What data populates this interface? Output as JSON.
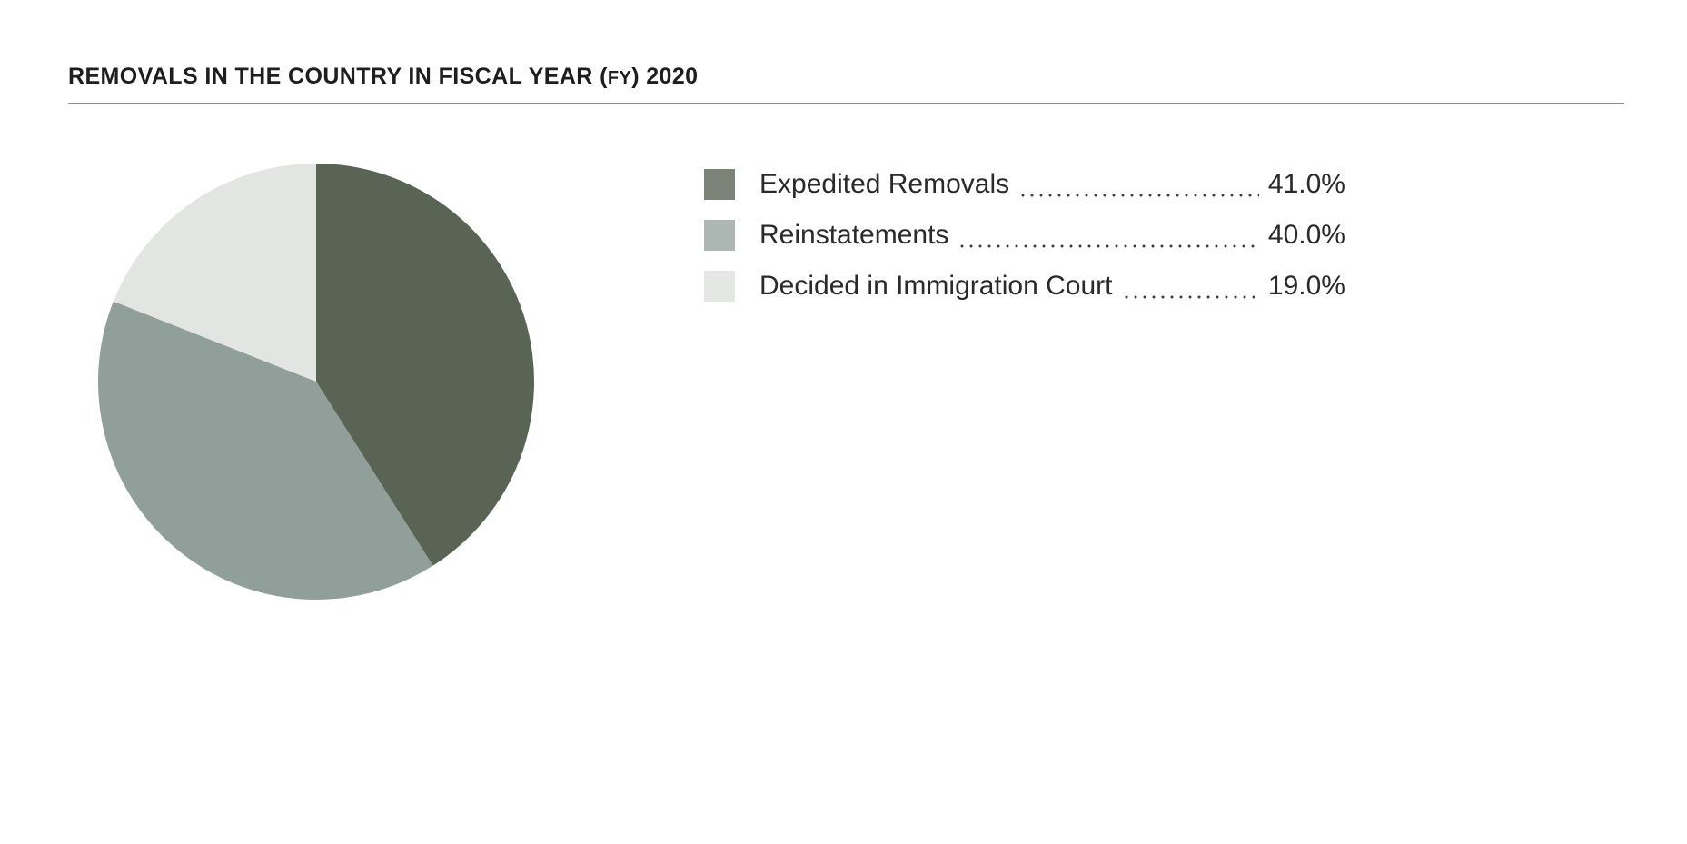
{
  "chart_data": {
    "type": "pie",
    "title": "REMOVALS IN THE COUNTRY IN FISCAL YEAR (",
    "title_abbrev": "FY",
    "title_suffix": ") 2020",
    "categories": [
      "Expedited Removals",
      "Reinstatements",
      "Decided in Immigration Court"
    ],
    "values": [
      41.0,
      40.0,
      19.0
    ],
    "value_labels": [
      "41.0%",
      "40.0%",
      "19.0%"
    ],
    "units": "%",
    "pie_colors": [
      "#5a6454",
      "#909f99",
      "#e3e5e3"
    ],
    "legend_colors": [
      "#7c8479",
      "#adb6b2",
      "#e5e7e5"
    ],
    "legend_placement": "right",
    "start_angle": "12 o'clock",
    "direction": "clockwise"
  }
}
